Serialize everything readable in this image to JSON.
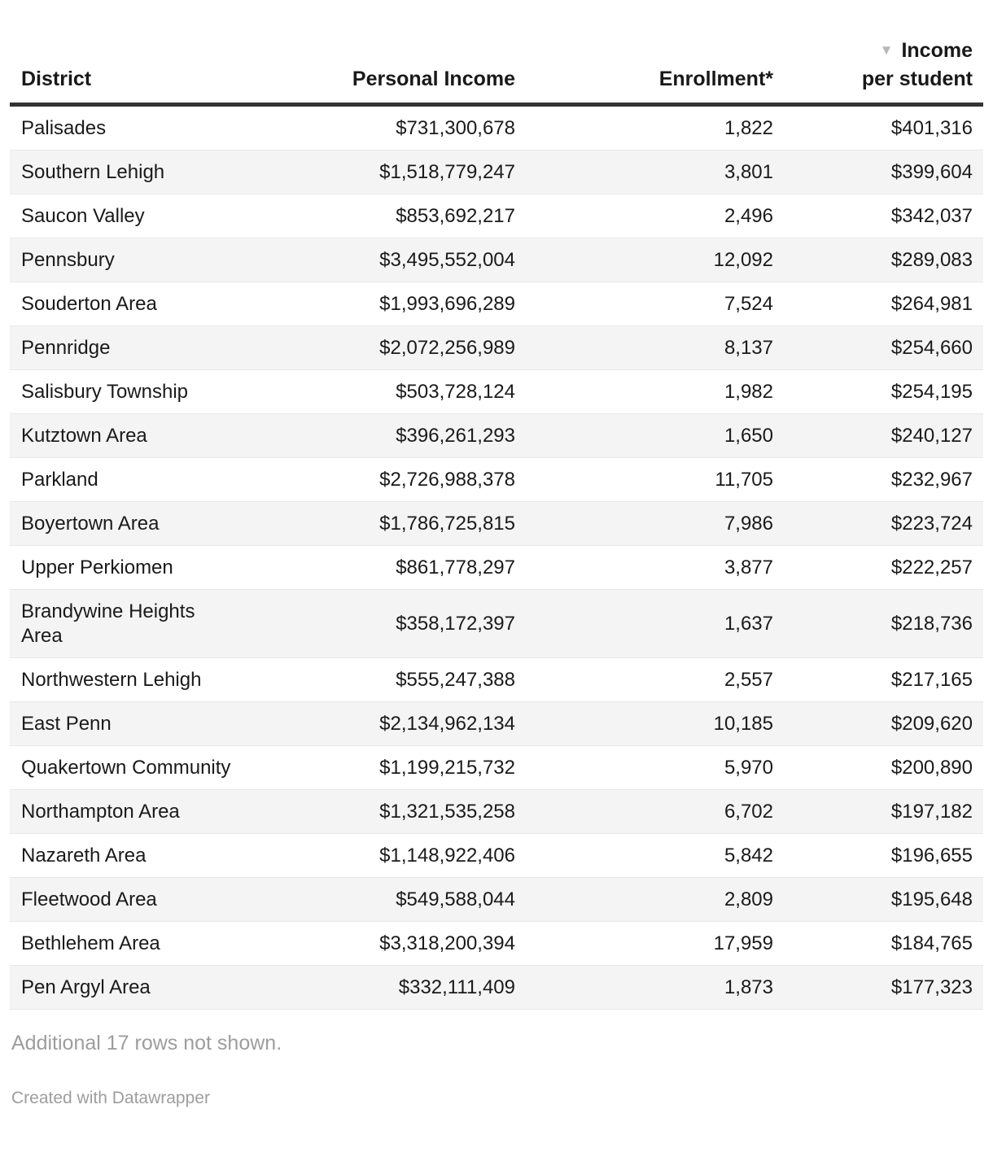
{
  "chart_data": {
    "type": "table",
    "columns": [
      "District",
      "Personal Income",
      "Enrollment*",
      "Income per student"
    ],
    "sorted_by": "Income per student",
    "sort_direction": "descending",
    "rows": [
      [
        "Palisades",
        "$731,300,678",
        "1,822",
        "$401,316"
      ],
      [
        "Southern Lehigh",
        "$1,518,779,247",
        "3,801",
        "$399,604"
      ],
      [
        "Saucon Valley",
        "$853,692,217",
        "2,496",
        "$342,037"
      ],
      [
        "Pennsbury",
        "$3,495,552,004",
        "12,092",
        "$289,083"
      ],
      [
        "Souderton Area",
        "$1,993,696,289",
        "7,524",
        "$264,981"
      ],
      [
        "Pennridge",
        "$2,072,256,989",
        "8,137",
        "$254,660"
      ],
      [
        "Salisbury Township",
        "$503,728,124",
        "1,982",
        "$254,195"
      ],
      [
        "Kutztown Area",
        "$396,261,293",
        "1,650",
        "$240,127"
      ],
      [
        "Parkland",
        "$2,726,988,378",
        "11,705",
        "$232,967"
      ],
      [
        "Boyertown Area",
        "$1,786,725,815",
        "7,986",
        "$223,724"
      ],
      [
        "Upper Perkiomen",
        "$861,778,297",
        "3,877",
        "$222,257"
      ],
      [
        "Brandywine Heights Area",
        "$358,172,397",
        "1,637",
        "$218,736"
      ],
      [
        "Northwestern Lehigh",
        "$555,247,388",
        "2,557",
        "$217,165"
      ],
      [
        "East Penn",
        "$2,134,962,134",
        "10,185",
        "$209,620"
      ],
      [
        "Quakertown Community",
        "$1,199,215,732",
        "5,970",
        "$200,890"
      ],
      [
        "Northampton Area",
        "$1,321,535,258",
        "6,702",
        "$197,182"
      ],
      [
        "Nazareth Area",
        "$1,148,922,406",
        "5,842",
        "$196,655"
      ],
      [
        "Fleetwood Area",
        "$549,588,044",
        "2,809",
        "$195,648"
      ],
      [
        "Bethlehem Area",
        "$3,318,200,394",
        "17,959",
        "$184,765"
      ],
      [
        "Pen Argyl Area",
        "$332,111,409",
        "1,873",
        "$177,323"
      ]
    ],
    "note": "Additional 17 rows not shown.",
    "credit": "Created with Datawrapper"
  },
  "header": {
    "district": "District",
    "personal_income": "Personal Income",
    "enrollment": "Enrollment*",
    "income_line1": "Income",
    "income_line2": "per student",
    "sort_icon": "▼"
  },
  "footer": {
    "note": "Additional 17 rows not shown.",
    "credit": "Created with Datawrapper"
  },
  "colors": {
    "stripe": "#f4f4f4",
    "row_border": "#e8e8e8",
    "header_rule": "#333333",
    "text": "#1a1a1a",
    "muted": "#9d9d9d",
    "sort_arrow": "#b8b8b8",
    "bg": "#ffffff"
  }
}
